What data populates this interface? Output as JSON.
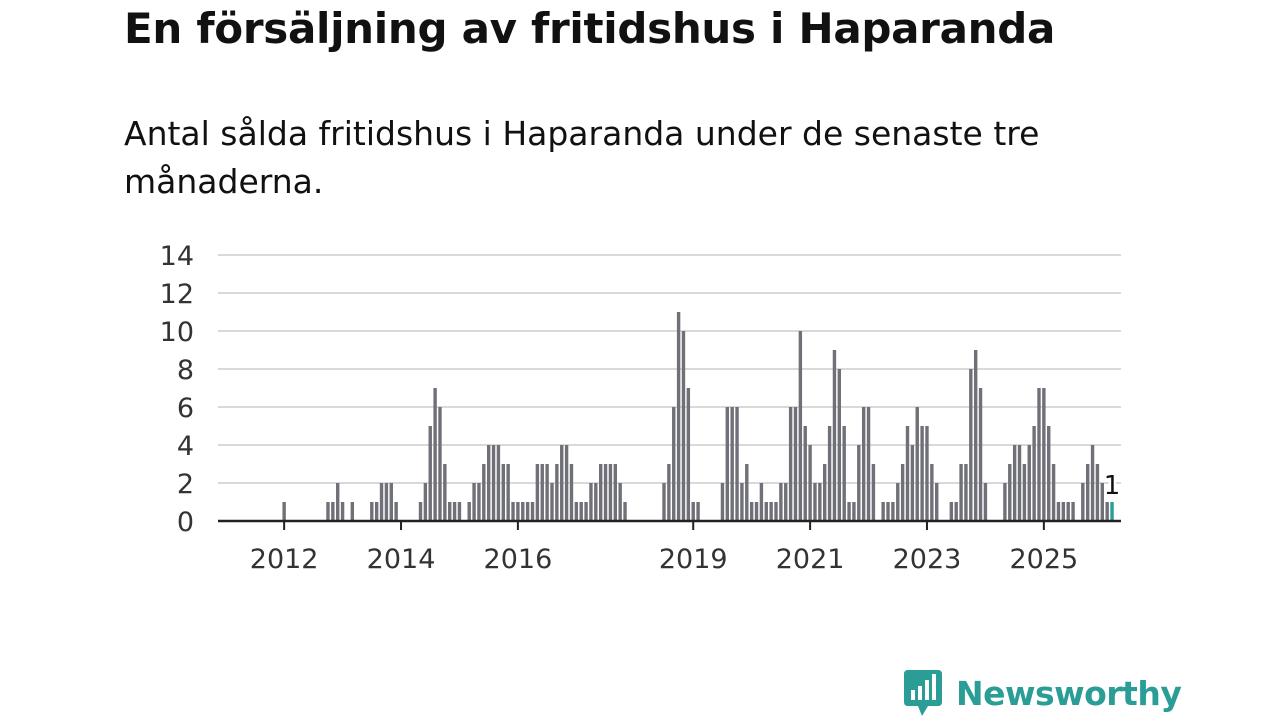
{
  "header": {
    "title": "En försäljning av fritidshus i Haparanda",
    "subtitle": "Antal sålda fritidshus i Haparanda under de senaste tre månaderna."
  },
  "brand": {
    "name": "Newsworthy",
    "color": "#2a9d96",
    "icon": "bar-chart-speech-bubble-icon"
  },
  "chart_data": {
    "type": "bar",
    "x_axis": "monthly, Jan 2011 – Mar 2026",
    "start": "2011-01",
    "ylim": [
      0,
      14
    ],
    "yticks": [
      0,
      2,
      4,
      6,
      8,
      10,
      12,
      14
    ],
    "xticks": [
      {
        "label": "2012",
        "x": "2012-01"
      },
      {
        "label": "2014",
        "x": "2014-01"
      },
      {
        "label": "2016",
        "x": "2016-01"
      },
      {
        "label": "2019",
        "x": "2019-01"
      },
      {
        "label": "2021",
        "x": "2021-01"
      },
      {
        "label": "2023",
        "x": "2023-01"
      },
      {
        "label": "2025",
        "x": "2025-01"
      }
    ],
    "grid": true,
    "bar_color": "#707078",
    "highlight_color": "#2a9d96",
    "highlight_label": "1",
    "values": [
      null,
      null,
      null,
      null,
      null,
      null,
      null,
      null,
      null,
      null,
      null,
      null,
      1,
      0,
      0,
      0,
      0,
      0,
      0,
      0,
      0,
      1,
      1,
      2,
      1,
      0,
      1,
      0,
      0,
      0,
      1,
      1,
      2,
      2,
      2,
      1,
      0,
      0,
      0,
      0,
      1,
      2,
      5,
      7,
      6,
      3,
      1,
      1,
      1,
      0,
      1,
      2,
      2,
      3,
      4,
      4,
      4,
      3,
      3,
      1,
      1,
      1,
      1,
      1,
      3,
      3,
      3,
      2,
      3,
      4,
      4,
      3,
      1,
      1,
      1,
      2,
      2,
      3,
      3,
      3,
      3,
      2,
      1,
      0,
      0,
      0,
      0,
      0,
      0,
      0,
      2,
      3,
      6,
      11,
      10,
      7,
      1,
      1,
      0,
      0,
      0,
      0,
      2,
      6,
      6,
      6,
      2,
      3,
      1,
      1,
      2,
      1,
      1,
      1,
      2,
      2,
      6,
      6,
      10,
      5,
      4,
      2,
      2,
      3,
      5,
      9,
      8,
      5,
      1,
      1,
      4,
      6,
      6,
      3,
      0,
      1,
      1,
      1,
      2,
      3,
      5,
      4,
      6,
      5,
      5,
      3,
      2,
      0,
      0,
      1,
      1,
      3,
      3,
      8,
      9,
      7,
      2,
      0,
      0,
      0,
      2,
      3,
      4,
      4,
      3,
      4,
      5,
      7,
      7,
      5,
      3,
      1,
      1,
      1,
      1,
      0,
      2,
      3,
      4,
      3,
      2,
      1,
      1
    ]
  }
}
